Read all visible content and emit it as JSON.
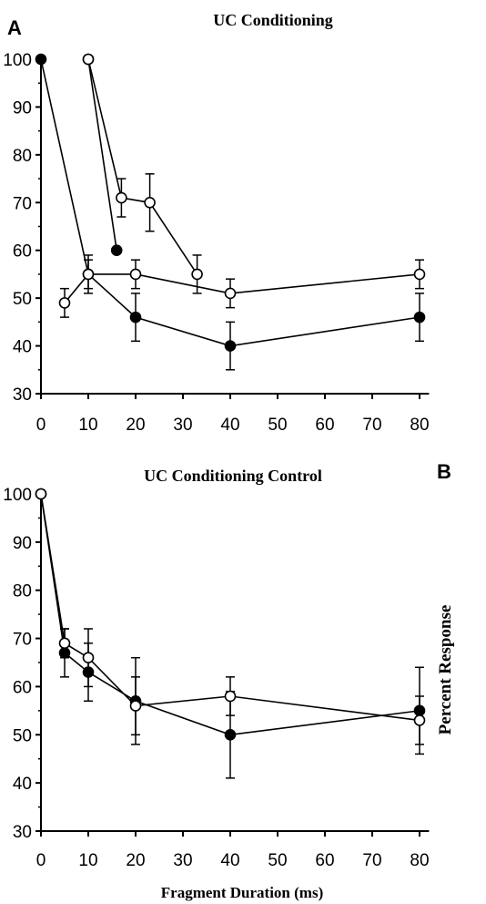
{
  "panel_labels": {
    "a": "A",
    "b": "B"
  },
  "chart_data": [
    {
      "type": "line",
      "title": "UC Conditioning",
      "xlabel": "",
      "ylabel": "Percent Response",
      "x_ticks": [
        0,
        10,
        20,
        30,
        40,
        50,
        60,
        70,
        80
      ],
      "y_ticks": [
        30,
        40,
        50,
        60,
        70,
        80,
        90,
        100
      ],
      "xlim": [
        0,
        82
      ],
      "ylim": [
        30,
        100
      ],
      "grid": false,
      "series": [
        {
          "marker": "filled",
          "x": [
            0,
            10,
            20,
            40,
            80
          ],
          "y": [
            100,
            55,
            46,
            40,
            46
          ],
          "err": [
            0,
            3,
            5,
            5,
            5
          ]
        },
        {
          "marker": "open",
          "x": [
            5,
            10,
            20,
            40,
            80
          ],
          "y": [
            49,
            55,
            55,
            51,
            55
          ],
          "err": [
            3,
            4,
            3,
            3,
            3
          ]
        }
      ],
      "overlay_series": [
        {
          "marker": "filled",
          "x": [
            10,
            16
          ],
          "y": [
            100,
            60
          ],
          "err": [
            0,
            0
          ]
        },
        {
          "marker": "open",
          "x": [
            10,
            17,
            23,
            33
          ],
          "y": [
            100,
            71,
            70,
            55
          ],
          "err": [
            0,
            4,
            6,
            4
          ]
        }
      ],
      "overlay_y_ticks_visible": [
        60,
        70,
        80,
        90,
        100
      ]
    },
    {
      "type": "line",
      "title": "UC Conditioning Control",
      "xlabel": "Fragment Duration (ms)",
      "ylabel": "Percent Response",
      "x_ticks": [
        0,
        10,
        20,
        30,
        40,
        50,
        60,
        70,
        80
      ],
      "y_ticks": [
        30,
        40,
        50,
        60,
        70,
        80,
        90,
        100
      ],
      "xlim": [
        0,
        82
      ],
      "ylim": [
        30,
        100
      ],
      "grid": false,
      "series": [
        {
          "marker": "filled",
          "x": [
            0,
            5,
            10,
            20,
            40,
            80
          ],
          "y": [
            100,
            67,
            63,
            57,
            50,
            55
          ],
          "err": [
            0,
            5,
            6,
            9,
            9,
            9
          ]
        },
        {
          "marker": "open",
          "x": [
            0,
            5,
            10,
            20,
            40,
            80
          ],
          "y": [
            100,
            69,
            66,
            56,
            58,
            53
          ],
          "err": [
            0,
            3,
            6,
            6,
            4,
            5
          ]
        }
      ]
    }
  ]
}
